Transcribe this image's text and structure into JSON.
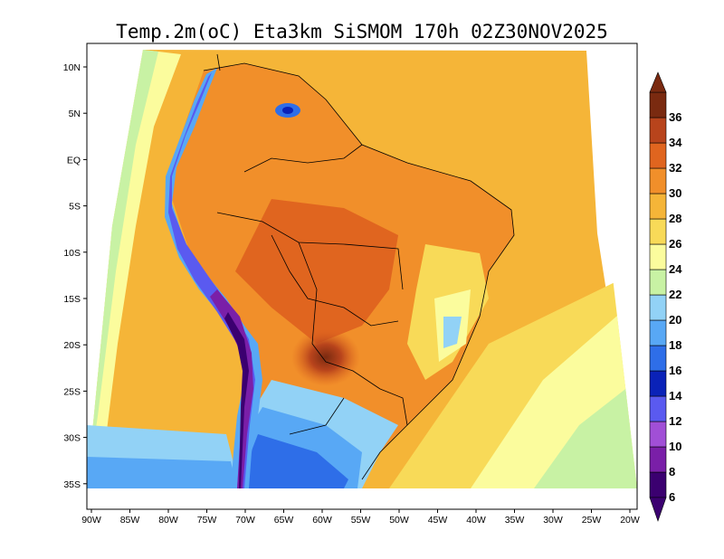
{
  "title": "Temp.2m(oC)  Eta3km  SiSMOM  170h  02Z30NOV2025",
  "map": {
    "variable": "2 m temperature",
    "units": "oC",
    "lat_labels": [
      "10N",
      "5N",
      "EQ",
      "5S",
      "10S",
      "15S",
      "20S",
      "25S",
      "30S",
      "35S"
    ],
    "lon_labels": [
      "90W",
      "85W",
      "80W",
      "75W",
      "70W",
      "65W",
      "60W",
      "55W",
      "50W",
      "45W",
      "40W",
      "35W",
      "30W",
      "25W",
      "20W"
    ]
  },
  "colorbar": {
    "labels": [
      "6",
      "8",
      "10",
      "12",
      "14",
      "16",
      "18",
      "20",
      "22",
      "24",
      "26",
      "28",
      "30",
      "32",
      "34",
      "36"
    ],
    "colors": [
      "#3b0070",
      "#7a1fa8",
      "#a14fd6",
      "#5a5af0",
      "#0a22b8",
      "#2e6ee8",
      "#58a8f5",
      "#92d2f6",
      "#c8f2a4",
      "#fbfc9d",
      "#f8da58",
      "#f5b538",
      "#f18f2a",
      "#e0651f",
      "#b8441c",
      "#7a2a10"
    ]
  }
}
